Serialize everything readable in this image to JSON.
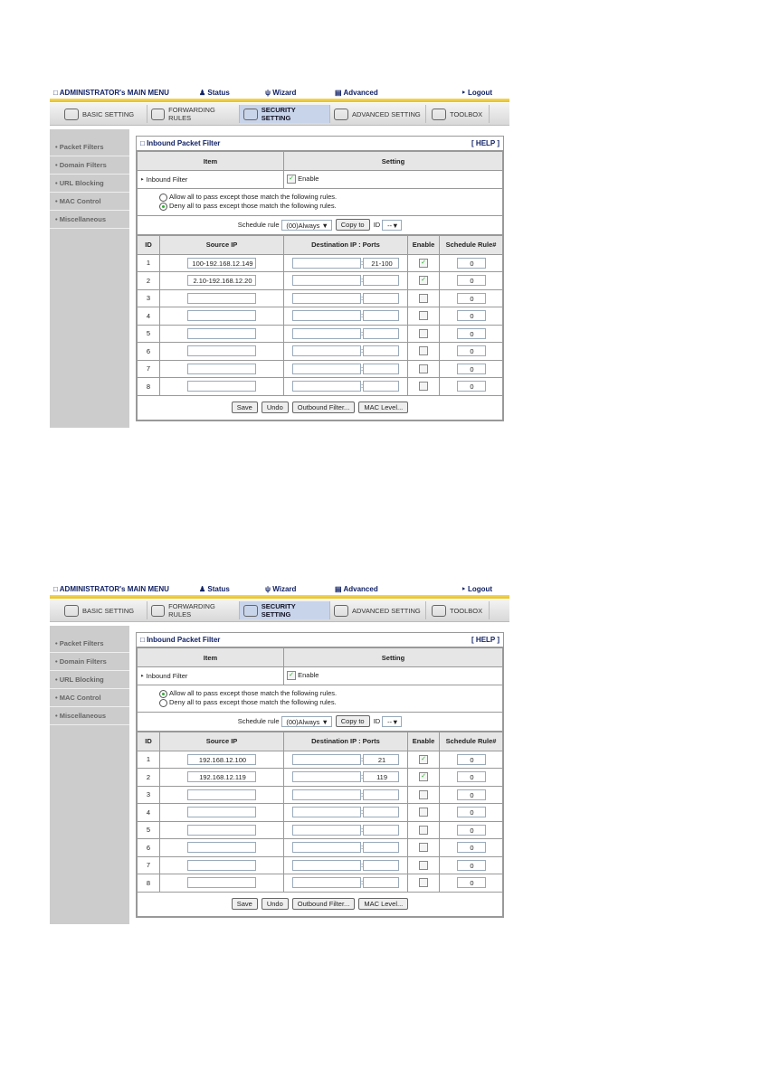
{
  "common": {
    "menu_title": "ADMINISTRATOR's MAIN MENU",
    "status": "Status",
    "wizard": "Wizard",
    "advanced": "Advanced",
    "logout": "Logout",
    "tabs": [
      "BASIC SETTING",
      "FORWARDING RULES",
      "SECURITY SETTING",
      "ADVANCED SETTING",
      "TOOLBOX"
    ],
    "active_tab": "SECURITY SETTING",
    "sidebar": [
      "Packet Filters",
      "Domain Filters",
      "URL Blocking",
      "MAC Control",
      "Miscellaneous"
    ],
    "panel_title": "Inbound Packet Filter",
    "help": "[ HELP ]",
    "col_item": "Item",
    "col_setting": "Setting",
    "inbound_filter": "Inbound Filter",
    "enable": "Enable",
    "allow_rule": "Allow all to pass except those match the following rules.",
    "deny_rule": "Deny all to pass except those match the following rules.",
    "schedule_rule": "Schedule rule",
    "schedule_value": "(00)Always",
    "copy_to": "Copy to",
    "id_label": "ID",
    "id_value": "--",
    "headers": [
      "ID",
      "Source IP",
      "Destination IP : Ports",
      "Enable",
      "Schedule Rule#"
    ],
    "buttons": [
      "Save",
      "Undo",
      "Outbound Filter...",
      "MAC Level..."
    ]
  },
  "screens": [
    {
      "mode": "deny",
      "rows": [
        {
          "id": "1",
          "src": "100-192.168.12.149",
          "dst": "",
          "port": "21-100",
          "enabled": true,
          "rule": "0"
        },
        {
          "id": "2",
          "src": "2.10-192.168.12.20",
          "dst": "",
          "port": "",
          "enabled": true,
          "rule": "0"
        },
        {
          "id": "3",
          "src": "",
          "dst": "",
          "port": "",
          "enabled": false,
          "rule": "0"
        },
        {
          "id": "4",
          "src": "",
          "dst": "",
          "port": "",
          "enabled": false,
          "rule": "0"
        },
        {
          "id": "5",
          "src": "",
          "dst": "",
          "port": "",
          "enabled": false,
          "rule": "0"
        },
        {
          "id": "6",
          "src": "",
          "dst": "",
          "port": "",
          "enabled": false,
          "rule": "0"
        },
        {
          "id": "7",
          "src": "",
          "dst": "",
          "port": "",
          "enabled": false,
          "rule": "0"
        },
        {
          "id": "8",
          "src": "",
          "dst": "",
          "port": "",
          "enabled": false,
          "rule": "0"
        }
      ]
    },
    {
      "mode": "allow",
      "rows": [
        {
          "id": "1",
          "src": "192.168.12.100",
          "dst": "",
          "port": "21",
          "enabled": true,
          "rule": "0"
        },
        {
          "id": "2",
          "src": "192.168.12.119",
          "dst": "",
          "port": "119",
          "enabled": true,
          "rule": "0"
        },
        {
          "id": "3",
          "src": "",
          "dst": "",
          "port": "",
          "enabled": false,
          "rule": "0"
        },
        {
          "id": "4",
          "src": "",
          "dst": "",
          "port": "",
          "enabled": false,
          "rule": "0"
        },
        {
          "id": "5",
          "src": "",
          "dst": "",
          "port": "",
          "enabled": false,
          "rule": "0"
        },
        {
          "id": "6",
          "src": "",
          "dst": "",
          "port": "",
          "enabled": false,
          "rule": "0"
        },
        {
          "id": "7",
          "src": "",
          "dst": "",
          "port": "",
          "enabled": false,
          "rule": "0"
        },
        {
          "id": "8",
          "src": "",
          "dst": "",
          "port": "",
          "enabled": false,
          "rule": "0"
        }
      ]
    }
  ]
}
